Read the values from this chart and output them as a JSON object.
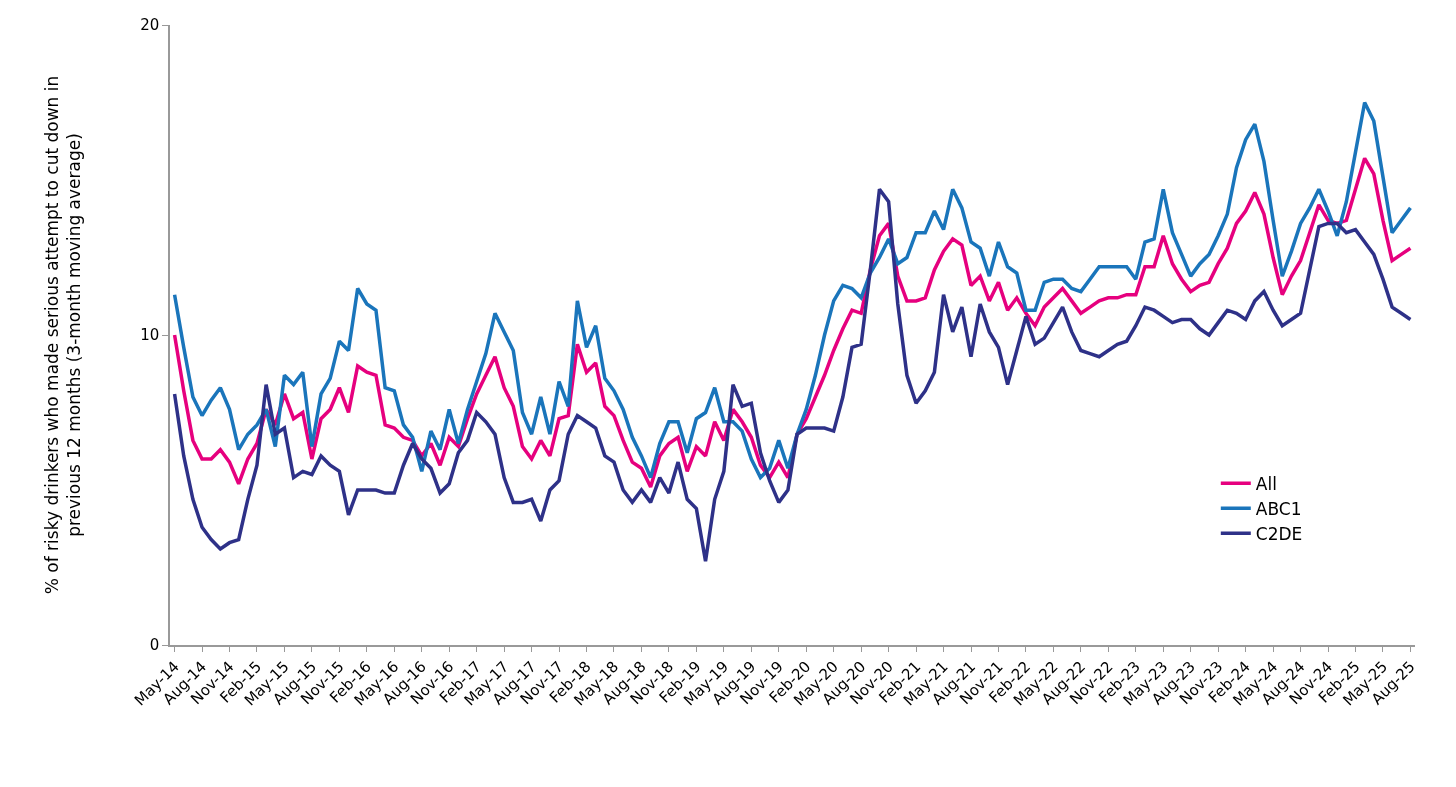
{
  "chart_data": {
    "type": "line",
    "ylabel": "% of risky drinkers who made serious attempt to cut down in\nprevious 12 months (3-month moving average)",
    "categories": [
      "May-14",
      null,
      null,
      "Aug-14",
      null,
      null,
      "Nov-14",
      null,
      null,
      "Feb-15",
      null,
      null,
      "May-15",
      null,
      null,
      "Aug-15",
      null,
      null,
      "Nov-15",
      null,
      null,
      "Feb-16",
      null,
      null,
      "May-16",
      null,
      null,
      "Aug-16",
      null,
      null,
      "Nov-16",
      null,
      null,
      "Feb-17",
      null,
      null,
      "May-17",
      null,
      null,
      "Aug-17",
      null,
      null,
      "Nov-17",
      null,
      null,
      "Feb-18",
      null,
      null,
      "May-18",
      null,
      null,
      "Aug-18",
      null,
      null,
      "Nov-18",
      null,
      null,
      "Feb-19",
      null,
      null,
      "May-19",
      null,
      null,
      "Aug-19",
      null,
      null,
      "Nov-19",
      null,
      null,
      "Feb-20",
      null,
      null,
      "May-20",
      null,
      null,
      "Aug-20",
      null,
      null,
      "Nov-20",
      null,
      null,
      "Feb-21",
      null,
      null,
      "May-21",
      null,
      null,
      "Aug-21",
      null,
      null,
      "Nov-21",
      null,
      null,
      "Feb-22",
      null,
      null,
      "May-22",
      null,
      null,
      "Aug-22",
      null,
      null,
      "Nov-22",
      null,
      null,
      "Feb-23",
      null,
      null,
      "May-23",
      null,
      null,
      "Aug-23",
      null,
      null,
      "Nov-23",
      null,
      null,
      "Feb-24",
      null,
      null,
      "May-24",
      null,
      null,
      "Aug-24",
      null,
      null,
      "Nov-24",
      null,
      null,
      "Feb-25",
      null,
      null,
      "May-25",
      null,
      null,
      "Aug-25"
    ],
    "series": [
      {
        "name": "All",
        "color": "#e6007e",
        "values": [
          10.0,
          8.2,
          6.6,
          6.0,
          6.0,
          6.3,
          5.9,
          5.2,
          6.0,
          6.5,
          7.6,
          7.1,
          8.1,
          7.3,
          7.5,
          6.0,
          7.3,
          7.6,
          8.3,
          7.5,
          9.0,
          8.8,
          8.7,
          7.1,
          7.0,
          6.7,
          6.6,
          6.1,
          6.5,
          5.8,
          6.7,
          6.4,
          7.3,
          8.1,
          8.7,
          9.3,
          8.3,
          7.7,
          6.4,
          6.0,
          6.6,
          6.1,
          7.3,
          7.4,
          9.7,
          8.8,
          9.1,
          7.7,
          7.4,
          6.6,
          5.9,
          5.7,
          5.1,
          6.1,
          6.5,
          6.7,
          5.6,
          6.4,
          6.1,
          7.2,
          6.6,
          7.6,
          7.2,
          6.7,
          5.8,
          5.4,
          5.9,
          5.4,
          6.8,
          7.3,
          8.0,
          8.7,
          9.5,
          10.2,
          10.8,
          10.7,
          12.1,
          13.2,
          13.6,
          11.9,
          11.1,
          11.1,
          11.2,
          12.1,
          12.7,
          13.1,
          12.9,
          11.6,
          11.9,
          11.1,
          11.7,
          10.8,
          11.2,
          10.7,
          10.3,
          10.9,
          11.2,
          11.5,
          11.1,
          10.7,
          10.9,
          11.1,
          11.2,
          11.2,
          11.3,
          11.3,
          12.2,
          12.2,
          13.2,
          12.3,
          11.8,
          11.4,
          11.6,
          11.7,
          12.3,
          12.8,
          13.6,
          14.0,
          14.6,
          13.9,
          12.5,
          11.3,
          11.9,
          12.4,
          13.3,
          14.2,
          13.7,
          13.6,
          13.7,
          14.7,
          15.7,
          15.2,
          13.7,
          12.4,
          12.6,
          12.8
        ]
      },
      {
        "name": "ABC1",
        "color": "#1a75bb",
        "values": [
          11.3,
          9.6,
          8.0,
          7.4,
          7.9,
          8.3,
          7.6,
          6.3,
          6.8,
          7.1,
          7.6,
          6.4,
          8.7,
          8.4,
          8.8,
          6.4,
          8.1,
          8.6,
          9.8,
          9.5,
          11.5,
          11.0,
          10.8,
          8.3,
          8.2,
          7.1,
          6.7,
          5.6,
          6.9,
          6.3,
          7.6,
          6.5,
          7.6,
          8.5,
          9.4,
          10.7,
          10.1,
          9.5,
          7.5,
          6.8,
          8.0,
          6.8,
          8.5,
          7.7,
          11.1,
          9.6,
          10.3,
          8.6,
          8.2,
          7.6,
          6.7,
          6.1,
          5.4,
          6.5,
          7.2,
          7.2,
          6.2,
          7.3,
          7.5,
          8.3,
          7.2,
          7.2,
          6.9,
          6.0,
          5.4,
          5.7,
          6.6,
          5.7,
          6.8,
          7.6,
          8.7,
          10.0,
          11.1,
          11.6,
          11.5,
          11.2,
          12.0,
          12.5,
          13.1,
          12.3,
          12.5,
          13.3,
          13.3,
          14.0,
          13.4,
          14.7,
          14.1,
          13.0,
          12.8,
          11.9,
          13.0,
          12.2,
          12.0,
          10.8,
          10.8,
          11.7,
          11.8,
          11.8,
          11.5,
          11.4,
          11.8,
          12.2,
          12.2,
          12.2,
          12.2,
          11.8,
          13.0,
          13.1,
          14.7,
          13.3,
          12.6,
          11.9,
          12.3,
          12.6,
          13.2,
          13.9,
          15.4,
          16.3,
          16.8,
          15.6,
          13.7,
          11.9,
          12.7,
          13.6,
          14.1,
          14.7,
          14.0,
          13.2,
          14.3,
          15.9,
          17.5,
          16.9,
          15.1,
          13.3,
          13.7,
          14.1
        ]
      },
      {
        "name": "C2DE",
        "color": "#2e3188",
        "values": [
          8.1,
          6.1,
          4.7,
          3.8,
          3.4,
          3.1,
          3.3,
          3.4,
          4.7,
          5.8,
          8.4,
          6.8,
          7.0,
          5.4,
          5.6,
          5.5,
          6.1,
          5.8,
          5.6,
          4.2,
          5.0,
          5.0,
          5.0,
          4.9,
          4.9,
          5.8,
          6.5,
          6.0,
          5.7,
          4.9,
          5.2,
          6.2,
          6.6,
          7.5,
          7.2,
          6.8,
          5.4,
          4.6,
          4.6,
          4.7,
          4.0,
          5.0,
          5.3,
          6.8,
          7.4,
          7.2,
          7.0,
          6.1,
          5.9,
          5.0,
          4.6,
          5.0,
          4.6,
          5.4,
          4.9,
          5.9,
          4.7,
          4.4,
          2.7,
          4.7,
          5.6,
          8.4,
          7.7,
          7.8,
          6.2,
          5.3,
          4.6,
          5.0,
          6.8,
          7.0,
          7.0,
          7.0,
          6.9,
          8.0,
          9.6,
          9.7,
          12.1,
          14.7,
          14.3,
          11.0,
          8.7,
          7.8,
          8.2,
          8.8,
          11.3,
          10.1,
          10.9,
          9.3,
          11.0,
          10.1,
          9.6,
          8.4,
          9.5,
          10.6,
          9.7,
          9.9,
          10.4,
          10.9,
          10.1,
          9.5,
          9.4,
          9.3,
          9.5,
          9.7,
          9.8,
          10.3,
          10.9,
          10.8,
          10.6,
          10.4,
          10.5,
          10.5,
          10.2,
          10.0,
          10.4,
          10.8,
          10.7,
          10.5,
          11.1,
          11.4,
          10.8,
          10.3,
          10.5,
          10.7,
          12.1,
          13.5,
          13.6,
          13.6,
          13.3,
          13.4,
          13.0,
          12.6,
          11.8,
          10.9,
          10.7,
          10.5
        ]
      }
    ],
    "ylim": [
      0,
      20
    ],
    "yticks": [
      0,
      10,
      20
    ],
    "grid": false,
    "legend": "bottom right",
    "marker": "none",
    "line_style": "solid"
  }
}
